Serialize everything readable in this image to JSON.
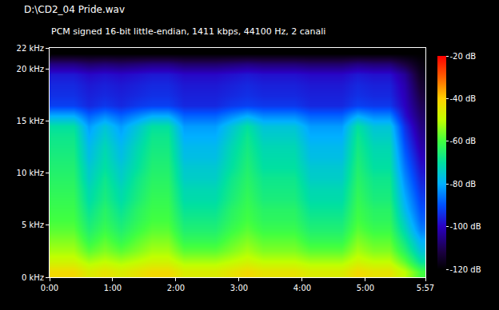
{
  "chart_data": {
    "type": "heatmap",
    "title": "D:\\CD2_04 Pride.wav",
    "subtitle": "PCM signed 16-bit little-endian, 1411 kbps, 44100 Hz, 2 canali",
    "x": [
      7.5,
      22.5,
      37.5,
      52.5,
      67.5,
      82.5,
      97.5,
      112.5,
      127.5,
      142.5,
      157.5,
      172.5,
      187.5,
      202.5,
      217.5,
      232.5,
      247.5,
      262.5,
      277.5,
      292.5,
      307.5,
      322.5,
      337.5,
      352.5
    ],
    "y": [
      0.5,
      1.5,
      2.5,
      3.5,
      4.5,
      5.5,
      6.5,
      7.5,
      8.5,
      9.5,
      10.5,
      11.5,
      12.5,
      13.5,
      14.5,
      15.5,
      16.5,
      17.5,
      18.5,
      19.5,
      20.5,
      21.5
    ],
    "z": [
      [
        -42,
        -42,
        -46,
        -44,
        -46,
        -44,
        -42,
        -42,
        -46,
        -46,
        -46,
        -44,
        -42,
        -44,
        -44,
        -44,
        -46,
        -46,
        -46,
        -42,
        -44,
        -44,
        -50,
        -60
      ],
      [
        -48,
        -48,
        -52,
        -50,
        -52,
        -50,
        -48,
        -48,
        -52,
        -52,
        -52,
        -50,
        -48,
        -50,
        -50,
        -50,
        -52,
        -52,
        -52,
        -48,
        -50,
        -50,
        -58,
        -70
      ],
      [
        -52,
        -52,
        -58,
        -55,
        -58,
        -55,
        -52,
        -52,
        -58,
        -58,
        -58,
        -55,
        -52,
        -55,
        -55,
        -55,
        -58,
        -58,
        -58,
        -52,
        -55,
        -55,
        -64,
        -76
      ],
      [
        -55,
        -55,
        -62,
        -58,
        -62,
        -58,
        -55,
        -55,
        -62,
        -62,
        -62,
        -58,
        -55,
        -58,
        -58,
        -58,
        -62,
        -62,
        -62,
        -55,
        -58,
        -58,
        -68,
        -80
      ],
      [
        -58,
        -58,
        -65,
        -61,
        -65,
        -61,
        -58,
        -58,
        -65,
        -65,
        -65,
        -61,
        -58,
        -61,
        -61,
        -61,
        -65,
        -65,
        -65,
        -58,
        -61,
        -61,
        -72,
        -85
      ],
      [
        -60,
        -60,
        -67,
        -63,
        -67,
        -63,
        -60,
        -60,
        -67,
        -67,
        -67,
        -63,
        -60,
        -63,
        -63,
        -63,
        -67,
        -67,
        -67,
        -60,
        -63,
        -63,
        -75,
        -88
      ],
      [
        -61,
        -61,
        -69,
        -64,
        -69,
        -64,
        -61,
        -61,
        -69,
        -69,
        -69,
        -64,
        -61,
        -64,
        -64,
        -64,
        -69,
        -69,
        -69,
        -61,
        -64,
        -64,
        -78,
        -90
      ],
      [
        -62,
        -62,
        -71,
        -66,
        -71,
        -66,
        -62,
        -62,
        -71,
        -71,
        -71,
        -66,
        -62,
        -66,
        -66,
        -66,
        -71,
        -71,
        -71,
        -62,
        -66,
        -66,
        -80,
        -92
      ],
      [
        -63,
        -63,
        -72,
        -67,
        -72,
        -67,
        -63,
        -63,
        -72,
        -72,
        -72,
        -67,
        -63,
        -67,
        -67,
        -67,
        -72,
        -72,
        -72,
        -63,
        -67,
        -67,
        -82,
        -94
      ],
      [
        -64,
        -64,
        -74,
        -68,
        -74,
        -68,
        -64,
        -64,
        -74,
        -74,
        -74,
        -68,
        -64,
        -68,
        -68,
        -68,
        -74,
        -74,
        -74,
        -64,
        -68,
        -68,
        -84,
        -96
      ],
      [
        -65,
        -65,
        -75,
        -70,
        -75,
        -70,
        -65,
        -65,
        -75,
        -75,
        -75,
        -70,
        -65,
        -70,
        -70,
        -70,
        -75,
        -75,
        -75,
        -65,
        -70,
        -70,
        -86,
        -98
      ],
      [
        -66,
        -66,
        -77,
        -71,
        -77,
        -71,
        -66,
        -66,
        -77,
        -77,
        -77,
        -71,
        -66,
        -71,
        -71,
        -71,
        -77,
        -77,
        -77,
        -66,
        -71,
        -71,
        -88,
        -100
      ],
      [
        -67,
        -67,
        -78,
        -72,
        -78,
        -72,
        -67,
        -67,
        -78,
        -78,
        -78,
        -72,
        -67,
        -72,
        -72,
        -72,
        -78,
        -78,
        -78,
        -67,
        -72,
        -72,
        -90,
        -102
      ],
      [
        -68,
        -68,
        -80,
        -74,
        -80,
        -74,
        -68,
        -68,
        -80,
        -80,
        -80,
        -74,
        -68,
        -74,
        -74,
        -74,
        -80,
        -80,
        -80,
        -68,
        -74,
        -74,
        -92,
        -104
      ],
      [
        -70,
        -70,
        -82,
        -76,
        -82,
        -76,
        -70,
        -70,
        -82,
        -82,
        -82,
        -76,
        -70,
        -76,
        -76,
        -76,
        -82,
        -82,
        -82,
        -70,
        -76,
        -76,
        -94,
        -106
      ],
      [
        -80,
        -80,
        -88,
        -84,
        -88,
        -84,
        -80,
        -80,
        -88,
        -88,
        -88,
        -84,
        -80,
        -84,
        -84,
        -84,
        -88,
        -88,
        -88,
        -80,
        -84,
        -84,
        -98,
        -108
      ],
      [
        -92,
        -92,
        -95,
        -93,
        -95,
        -93,
        -92,
        -92,
        -95,
        -95,
        -95,
        -93,
        -92,
        -93,
        -93,
        -93,
        -95,
        -95,
        -95,
        -92,
        -93,
        -93,
        -100,
        -110
      ],
      [
        -94,
        -94,
        -96,
        -95,
        -96,
        -95,
        -94,
        -94,
        -96,
        -96,
        -96,
        -95,
        -94,
        -95,
        -95,
        -95,
        -96,
        -96,
        -96,
        -94,
        -95,
        -95,
        -101,
        -112
      ],
      [
        -95,
        -95,
        -97,
        -96,
        -97,
        -96,
        -95,
        -95,
        -97,
        -97,
        -97,
        -96,
        -95,
        -96,
        -96,
        -96,
        -97,
        -97,
        -97,
        -95,
        -96,
        -96,
        -102,
        -114
      ],
      [
        -97,
        -97,
        -99,
        -98,
        -99,
        -98,
        -97,
        -97,
        -99,
        -99,
        -99,
        -98,
        -97,
        -98,
        -98,
        -98,
        -99,
        -99,
        -99,
        -97,
        -98,
        -98,
        -104,
        -116
      ],
      [
        -106,
        -106,
        -108,
        -107,
        -108,
        -107,
        -106,
        -106,
        -108,
        -108,
        -108,
        -107,
        -106,
        -107,
        -107,
        -107,
        -108,
        -108,
        -108,
        -106,
        -107,
        -107,
        -112,
        -118
      ],
      [
        -120,
        -120,
        -120,
        -120,
        -120,
        -120,
        -120,
        -120,
        -120,
        -120,
        -120,
        -120,
        -120,
        -120,
        -120,
        -120,
        -120,
        -120,
        -120,
        -120,
        -120,
        -120,
        -120,
        -120
      ]
    ],
    "xlim": [
      0,
      357
    ],
    "xticks": [
      {
        "value": 0,
        "label": "0:00"
      },
      {
        "value": 60,
        "label": "1:00"
      },
      {
        "value": 120,
        "label": "2:00"
      },
      {
        "value": 180,
        "label": "3:00"
      },
      {
        "value": 240,
        "label": "4:00"
      },
      {
        "value": 300,
        "label": "5:00"
      },
      {
        "value": 357,
        "label": "5:57"
      }
    ],
    "ylim": [
      0,
      22
    ],
    "yticks": [
      {
        "value": 0,
        "label": "0 kHz"
      },
      {
        "value": 5,
        "label": "5 kHz"
      },
      {
        "value": 10,
        "label": "10 kHz"
      },
      {
        "value": 15,
        "label": "15 kHz"
      },
      {
        "value": 20,
        "label": "20 kHz"
      },
      {
        "value": 22,
        "label": "22 kHz"
      }
    ],
    "zlim": [
      -120,
      -20
    ],
    "zticks": [
      {
        "value": -20,
        "label": "-20 dB"
      },
      {
        "value": -40,
        "label": "-40 dB"
      },
      {
        "value": -60,
        "label": "-60 dB"
      },
      {
        "value": -80,
        "label": "-80 dB"
      },
      {
        "value": -100,
        "label": "-100 dB"
      },
      {
        "value": -120,
        "label": "-120 dB"
      }
    ],
    "grid": false
  }
}
